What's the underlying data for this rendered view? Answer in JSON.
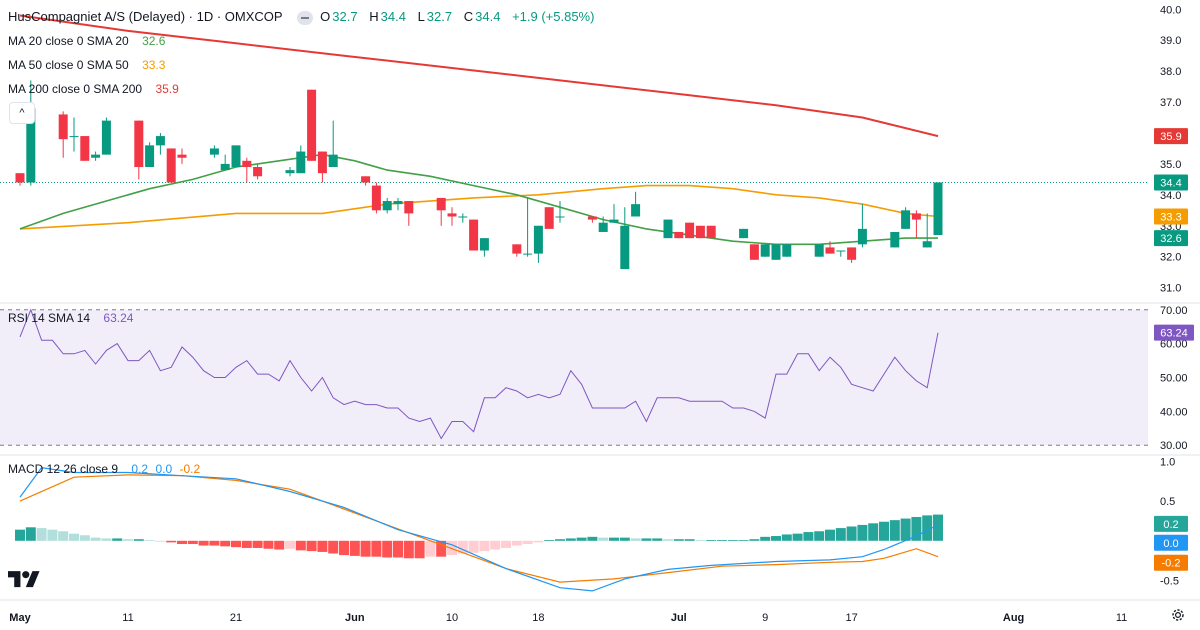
{
  "header": {
    "symbol": "HusCompagniet A/S (Delayed) · 1D · OMXCOP",
    "ohlc": [
      {
        "label": "O",
        "value": "32.7"
      },
      {
        "label": "H",
        "value": "34.4"
      },
      {
        "label": "L",
        "value": "32.7"
      },
      {
        "label": "C",
        "value": "34.4"
      }
    ],
    "change": "+1.9 (+5.85%)"
  },
  "ma_legends": [
    {
      "label": "MA 20 close 0 SMA 20",
      "value": "32.6",
      "color": "#43a047"
    },
    {
      "label": "MA 50 close 0 SMA 50",
      "value": "33.3",
      "color": "#f59d00"
    },
    {
      "label": "MA 200 close 0 SMA 200",
      "value": "35.9",
      "color": "#e53935"
    }
  ],
  "rsi_legend": {
    "label": "RSI 14 SMA 14",
    "value": "63.24",
    "color": "#7e57c2"
  },
  "macd_legend": {
    "label": "MACD 12 26 close 9",
    "values": [
      "0.2",
      "0.0",
      "-0.2"
    ],
    "colors": [
      "#2196f3",
      "#2196f3",
      "#f57c00"
    ]
  },
  "colors": {
    "up": "#089981",
    "down": "#f23645",
    "ma20": "#43a047",
    "ma50": "#f59d00",
    "ma200": "#e53935",
    "rsi": "#7e57c2",
    "macd": "#2196f3",
    "signal": "#f57c00"
  },
  "chart_data": [
    {
      "type": "candlestick",
      "title": "HusCompagniet A/S (Delayed) · 1D · OMXCOP",
      "ylim": [
        30.6,
        40.3
      ],
      "y_ticks": [
        "40.0",
        "39.0",
        "38.0",
        "37.0",
        "35.0",
        "34.0",
        "33.0",
        "32.0",
        "31.0"
      ],
      "x_ticks": [
        {
          "label": "May",
          "day": 0
        },
        {
          "label": "11",
          "day": 10
        },
        {
          "label": "21",
          "day": 20
        },
        {
          "label": "Jun",
          "day": 31
        },
        {
          "label": "10",
          "day": 40
        },
        {
          "label": "18",
          "day": 48
        },
        {
          "label": "Jul",
          "day": 61
        },
        {
          "label": "9",
          "day": 69
        },
        {
          "label": "17",
          "day": 77
        },
        {
          "label": "Aug",
          "day": 92
        },
        {
          "label": "11",
          "day": 102
        }
      ],
      "candles": [
        {
          "day": 0,
          "o": 34.7,
          "h": 34.7,
          "l": 34.3,
          "c": 34.4
        },
        {
          "day": 1,
          "o": 34.4,
          "h": 37.7,
          "l": 34.3,
          "c": 36.8
        },
        {
          "day": 4,
          "o": 36.6,
          "h": 36.7,
          "l": 35.2,
          "c": 35.8
        },
        {
          "day": 5,
          "o": 35.9,
          "h": 36.5,
          "l": 35.4,
          "c": 35.9
        },
        {
          "day": 6,
          "o": 35.9,
          "h": 35.9,
          "l": 35.1,
          "c": 35.1
        },
        {
          "day": 7,
          "o": 35.2,
          "h": 35.4,
          "l": 35.1,
          "c": 35.3
        },
        {
          "day": 8,
          "o": 35.3,
          "h": 36.5,
          "l": 35.3,
          "c": 36.4
        },
        {
          "day": 11,
          "o": 36.4,
          "h": 36.4,
          "l": 34.5,
          "c": 34.9
        },
        {
          "day": 12,
          "o": 34.9,
          "h": 35.7,
          "l": 34.9,
          "c": 35.6
        },
        {
          "day": 13,
          "o": 35.6,
          "h": 36.0,
          "l": 35.3,
          "c": 35.9
        },
        {
          "day": 14,
          "o": 35.5,
          "h": 35.5,
          "l": 34.4,
          "c": 34.4
        },
        {
          "day": 15,
          "o": 35.3,
          "h": 35.5,
          "l": 35.0,
          "c": 35.2
        },
        {
          "day": 18,
          "o": 35.3,
          "h": 35.6,
          "l": 35.2,
          "c": 35.5
        },
        {
          "day": 19,
          "o": 34.8,
          "h": 35.3,
          "l": 34.8,
          "c": 35.0
        },
        {
          "day": 20,
          "o": 34.9,
          "h": 35.6,
          "l": 34.9,
          "c": 35.6
        },
        {
          "day": 21,
          "o": 35.1,
          "h": 35.2,
          "l": 34.4,
          "c": 34.9
        },
        {
          "day": 22,
          "o": 34.9,
          "h": 35.0,
          "l": 34.5,
          "c": 34.6
        },
        {
          "day": 25,
          "o": 34.7,
          "h": 34.9,
          "l": 34.6,
          "c": 34.8
        },
        {
          "day": 26,
          "o": 34.7,
          "h": 35.6,
          "l": 34.7,
          "c": 35.4
        },
        {
          "day": 27,
          "o": 37.4,
          "h": 37.4,
          "l": 35.1,
          "c": 35.1
        },
        {
          "day": 28,
          "o": 35.4,
          "h": 35.4,
          "l": 34.4,
          "c": 34.7
        },
        {
          "day": 29,
          "o": 34.9,
          "h": 36.4,
          "l": 34.9,
          "c": 35.3
        },
        {
          "day": 32,
          "o": 34.6,
          "h": 34.6,
          "l": 34.3,
          "c": 34.4
        },
        {
          "day": 33,
          "o": 34.3,
          "h": 34.4,
          "l": 33.4,
          "c": 33.5
        },
        {
          "day": 34,
          "o": 33.5,
          "h": 33.9,
          "l": 33.4,
          "c": 33.8
        },
        {
          "day": 35,
          "o": 33.7,
          "h": 33.9,
          "l": 33.5,
          "c": 33.8
        },
        {
          "day": 36,
          "o": 33.8,
          "h": 33.8,
          "l": 33.0,
          "c": 33.4
        },
        {
          "day": 39,
          "o": 33.9,
          "h": 33.9,
          "l": 33.0,
          "c": 33.5
        },
        {
          "day": 40,
          "o": 33.4,
          "h": 33.6,
          "l": 33.0,
          "c": 33.3
        },
        {
          "day": 41,
          "o": 33.3,
          "h": 33.4,
          "l": 33.1,
          "c": 33.3
        },
        {
          "day": 42,
          "o": 33.2,
          "h": 33.2,
          "l": 32.2,
          "c": 32.2
        },
        {
          "day": 43,
          "o": 32.2,
          "h": 32.6,
          "l": 32.0,
          "c": 32.6
        },
        {
          "day": 46,
          "o": 32.4,
          "h": 32.4,
          "l": 32.0,
          "c": 32.1
        },
        {
          "day": 47,
          "o": 32.1,
          "h": 33.9,
          "l": 32.0,
          "c": 32.1
        },
        {
          "day": 48,
          "o": 32.1,
          "h": 33.0,
          "l": 31.8,
          "c": 33.0
        },
        {
          "day": 49,
          "o": 33.6,
          "h": 33.6,
          "l": 32.9,
          "c": 32.9
        },
        {
          "day": 50,
          "o": 33.3,
          "h": 33.8,
          "l": 33.1,
          "c": 33.3
        },
        {
          "day": 53,
          "o": 33.3,
          "h": 33.3,
          "l": 33.1,
          "c": 33.2
        },
        {
          "day": 54,
          "o": 32.8,
          "h": 33.3,
          "l": 32.8,
          "c": 33.1
        },
        {
          "day": 55,
          "o": 33.1,
          "h": 33.7,
          "l": 33.1,
          "c": 33.2
        },
        {
          "day": 56,
          "o": 31.6,
          "h": 33.6,
          "l": 31.6,
          "c": 33.0
        },
        {
          "day": 57,
          "o": 33.3,
          "h": 34.1,
          "l": 33.3,
          "c": 33.7
        },
        {
          "day": 60,
          "o": 32.6,
          "h": 33.2,
          "l": 32.6,
          "c": 33.2
        },
        {
          "day": 61,
          "o": 32.8,
          "h": 32.8,
          "l": 32.6,
          "c": 32.6
        },
        {
          "day": 62,
          "o": 33.1,
          "h": 33.1,
          "l": 32.6,
          "c": 32.6
        },
        {
          "day": 63,
          "o": 33.0,
          "h": 33.0,
          "l": 32.6,
          "c": 32.6
        },
        {
          "day": 64,
          "o": 33.0,
          "h": 33.0,
          "l": 32.6,
          "c": 32.6
        },
        {
          "day": 67,
          "o": 32.6,
          "h": 32.9,
          "l": 32.6,
          "c": 32.9
        },
        {
          "day": 68,
          "o": 32.4,
          "h": 32.4,
          "l": 31.9,
          "c": 31.9
        },
        {
          "day": 69,
          "o": 32.0,
          "h": 32.4,
          "l": 32.0,
          "c": 32.4
        },
        {
          "day": 70,
          "o": 31.9,
          "h": 32.4,
          "l": 31.9,
          "c": 32.4
        },
        {
          "day": 71,
          "o": 32.0,
          "h": 32.4,
          "l": 32.0,
          "c": 32.4
        },
        {
          "day": 74,
          "o": 32.0,
          "h": 32.4,
          "l": 32.0,
          "c": 32.4
        },
        {
          "day": 75,
          "o": 32.3,
          "h": 32.5,
          "l": 32.1,
          "c": 32.1
        },
        {
          "day": 76,
          "o": 32.2,
          "h": 32.2,
          "l": 32.0,
          "c": 32.2
        },
        {
          "day": 77,
          "o": 32.3,
          "h": 32.3,
          "l": 31.8,
          "c": 31.9
        },
        {
          "day": 78,
          "o": 32.4,
          "h": 33.7,
          "l": 32.3,
          "c": 32.9
        },
        {
          "day": 81,
          "o": 32.3,
          "h": 32.8,
          "l": 32.3,
          "c": 32.8
        },
        {
          "day": 82,
          "o": 32.9,
          "h": 33.6,
          "l": 32.9,
          "c": 33.5
        },
        {
          "day": 83,
          "o": 33.4,
          "h": 33.5,
          "l": 32.6,
          "c": 33.2
        },
        {
          "day": 84,
          "o": 32.3,
          "h": 33.4,
          "l": 32.3,
          "c": 32.5
        },
        {
          "day": 85,
          "o": 32.7,
          "h": 34.4,
          "l": 32.7,
          "c": 34.4
        }
      ],
      "ma20": [
        [
          0,
          32.9
        ],
        [
          4,
          33.4
        ],
        [
          8,
          33.8
        ],
        [
          12,
          34.2
        ],
        [
          16,
          34.5
        ],
        [
          20,
          34.9
        ],
        [
          24,
          35.1
        ],
        [
          28,
          35.3
        ],
        [
          31,
          35.1
        ],
        [
          34,
          34.8
        ],
        [
          38,
          34.6
        ],
        [
          42,
          34.3
        ],
        [
          46,
          34.0
        ],
        [
          50,
          33.6
        ],
        [
          54,
          33.2
        ],
        [
          58,
          32.9
        ],
        [
          62,
          32.7
        ],
        [
          66,
          32.5
        ],
        [
          70,
          32.4
        ],
        [
          74,
          32.4
        ],
        [
          78,
          32.5
        ],
        [
          82,
          32.6
        ],
        [
          85,
          32.6
        ]
      ],
      "ma50": [
        [
          0,
          32.9
        ],
        [
          10,
          33.1
        ],
        [
          20,
          33.4
        ],
        [
          28,
          33.4
        ],
        [
          34,
          33.7
        ],
        [
          42,
          33.9
        ],
        [
          48,
          34.0
        ],
        [
          54,
          34.2
        ],
        [
          58,
          34.3
        ],
        [
          62,
          34.3
        ],
        [
          66,
          34.2
        ],
        [
          70,
          34.0
        ],
        [
          74,
          33.9
        ],
        [
          78,
          33.7
        ],
        [
          82,
          33.4
        ],
        [
          85,
          33.3
        ]
      ],
      "ma200": [
        [
          0,
          39.8
        ],
        [
          10,
          39.3
        ],
        [
          20,
          38.9
        ],
        [
          30,
          38.5
        ],
        [
          40,
          38.1
        ],
        [
          50,
          37.7
        ],
        [
          60,
          37.3
        ],
        [
          70,
          36.9
        ],
        [
          78,
          36.5
        ],
        [
          85,
          35.9
        ]
      ],
      "last_price": "34.4",
      "price_labels": [
        {
          "value": "35.9",
          "price": 35.9,
          "color": "#e53935"
        },
        {
          "value": "34.4",
          "price": 34.4,
          "color": "#089981"
        },
        {
          "value": "33.3",
          "price": 33.3,
          "color": "#f59d00"
        },
        {
          "value": "32.6",
          "price": 32.6,
          "color": "#089981"
        }
      ]
    },
    {
      "type": "line",
      "title": "RSI 14 SMA 14",
      "ylim": [
        28,
        72
      ],
      "y_ticks": [
        "70.00",
        "60.00",
        "50.00",
        "40.00",
        "30.00"
      ],
      "bands": [
        70,
        30
      ],
      "last_value": "63.24",
      "x": [
        0,
        1,
        2,
        3,
        4,
        5,
        6,
        7,
        8,
        9,
        10,
        11,
        12,
        13,
        14,
        15,
        16,
        17,
        18,
        19,
        20,
        21,
        22,
        23,
        24,
        25,
        26,
        27,
        28,
        29,
        30,
        31,
        32,
        33,
        34,
        35,
        36,
        37,
        38,
        39,
        40,
        41,
        42,
        43,
        44,
        45,
        46,
        47,
        48,
        49,
        50,
        51,
        52,
        53,
        54,
        55,
        56,
        57,
        58,
        59,
        60,
        61,
        62,
        63,
        64,
        65,
        66,
        67,
        68,
        69,
        70,
        71,
        72,
        73,
        74,
        75,
        76,
        77,
        78,
        79,
        80,
        81,
        82,
        83,
        84,
        85
      ],
      "values": [
        62,
        70,
        61,
        61,
        57,
        57,
        58,
        54,
        58,
        60,
        55,
        55,
        58,
        52,
        53,
        59,
        56,
        52,
        50,
        50,
        53,
        55,
        51,
        51,
        49,
        55,
        50,
        46,
        50,
        44,
        42,
        43,
        42,
        42,
        41,
        41,
        38,
        37,
        38,
        32,
        37,
        37,
        34,
        44,
        44,
        47,
        46,
        44,
        45,
        44,
        45,
        52,
        48,
        41,
        41,
        41,
        41,
        43,
        37,
        44,
        44,
        44,
        43,
        43,
        43,
        43,
        41,
        41,
        40,
        38,
        51,
        51,
        57,
        57,
        52,
        56,
        53,
        48,
        47,
        46,
        51,
        56,
        52,
        49,
        47,
        63.24
      ]
    },
    {
      "type": "line",
      "title": "MACD 12 26 close 9",
      "ylim": [
        -0.72,
        1.08
      ],
      "y_ticks": [
        "1.0",
        "0.5",
        "0.0",
        "-0.5"
      ],
      "last_values": [
        "0.2",
        "0.0",
        "-0.2"
      ],
      "histogram": [
        0.14,
        0.17,
        0.16,
        0.14,
        0.12,
        0.09,
        0.07,
        0.04,
        0.03,
        0.03,
        0.02,
        0.02,
        0.01,
        0.0,
        -0.02,
        -0.04,
        -0.04,
        -0.06,
        -0.06,
        -0.07,
        -0.08,
        -0.09,
        -0.09,
        -0.1,
        -0.11,
        -0.1,
        -0.12,
        -0.13,
        -0.14,
        -0.16,
        -0.18,
        -0.19,
        -0.2,
        -0.2,
        -0.21,
        -0.21,
        -0.22,
        -0.22,
        -0.2,
        -0.2,
        -0.18,
        -0.16,
        -0.15,
        -0.13,
        -0.11,
        -0.09,
        -0.06,
        -0.04,
        -0.02,
        0.01,
        0.02,
        0.03,
        0.04,
        0.05,
        0.04,
        0.04,
        0.04,
        0.03,
        0.03,
        0.03,
        0.02,
        0.02,
        0.02,
        0.01,
        0.01,
        0.01,
        0.01,
        0.01,
        0.02,
        0.05,
        0.06,
        0.08,
        0.09,
        0.11,
        0.12,
        0.14,
        0.16,
        0.18,
        0.2,
        0.22,
        0.24,
        0.26,
        0.28,
        0.3,
        0.32,
        0.33
      ],
      "macd": [
        [
          0,
          0.55
        ],
        [
          2,
          0.92
        ],
        [
          5,
          0.86
        ],
        [
          10,
          0.86
        ],
        [
          15,
          0.82
        ],
        [
          20,
          0.78
        ],
        [
          25,
          0.62
        ],
        [
          30,
          0.42
        ],
        [
          35,
          0.14
        ],
        [
          40,
          -0.05
        ],
        [
          45,
          -0.35
        ],
        [
          50,
          -0.59
        ],
        [
          53,
          -0.63
        ],
        [
          56,
          -0.48
        ],
        [
          60,
          -0.36
        ],
        [
          64,
          -0.31
        ],
        [
          70,
          -0.26
        ],
        [
          75,
          -0.24
        ],
        [
          78,
          -0.2
        ],
        [
          80,
          -0.11
        ],
        [
          83,
          0.06
        ],
        [
          85,
          0.2
        ]
      ],
      "signal": [
        [
          0,
          0.5
        ],
        [
          5,
          0.8
        ],
        [
          10,
          0.83
        ],
        [
          15,
          0.82
        ],
        [
          20,
          0.76
        ],
        [
          25,
          0.65
        ],
        [
          30,
          0.4
        ],
        [
          35,
          0.15
        ],
        [
          40,
          -0.1
        ],
        [
          45,
          -0.35
        ],
        [
          50,
          -0.52
        ],
        [
          55,
          -0.48
        ],
        [
          60,
          -0.4
        ],
        [
          65,
          -0.32
        ],
        [
          70,
          -0.3
        ],
        [
          75,
          -0.27
        ],
        [
          78,
          -0.26
        ],
        [
          80,
          -0.22
        ],
        [
          83,
          -0.1
        ],
        [
          85,
          -0.2
        ]
      ]
    }
  ]
}
